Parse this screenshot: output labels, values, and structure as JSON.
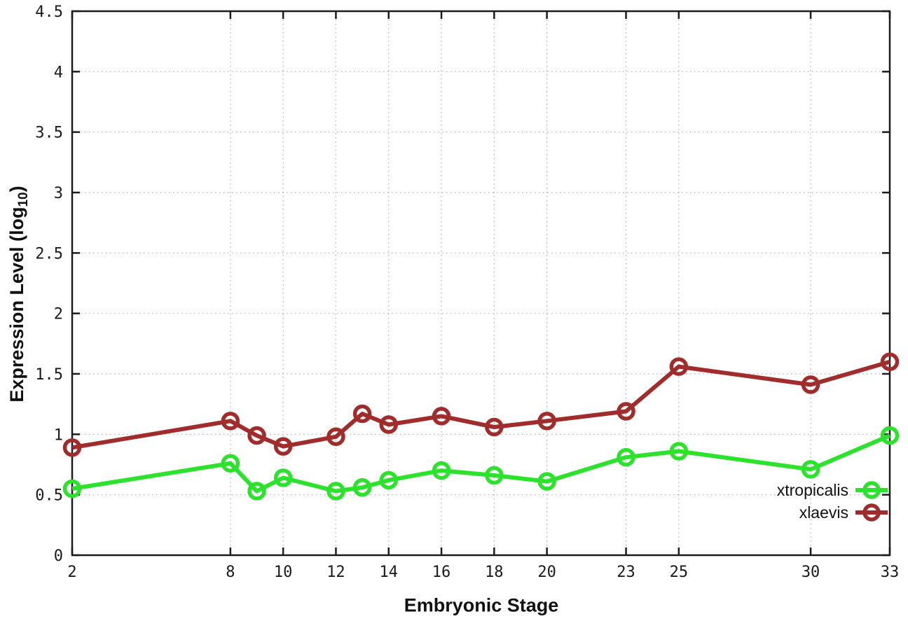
{
  "figure": {
    "xlabel": "Embryonic Stage",
    "ylabel_prefix": "Expression Level (log",
    "ylabel_sub": "10",
    "ylabel_suffix": ")"
  },
  "chart_data": {
    "type": "line",
    "title": "",
    "xlabel": "Embryonic Stage",
    "ylabel": "Expression Level (log10)",
    "x": [
      2,
      8,
      9,
      10,
      12,
      13,
      14,
      16,
      18,
      20,
      23,
      25,
      30,
      33
    ],
    "series": [
      {
        "name": "xtropicalis",
        "color": "#2ce22c",
        "marker": "open-circle",
        "values": [
          0.55,
          0.76,
          0.53,
          0.64,
          0.53,
          0.56,
          0.62,
          0.7,
          0.66,
          0.61,
          0.81,
          0.86,
          0.71,
          0.99
        ]
      },
      {
        "name": "xlaevis",
        "color": "#a02c2c",
        "marker": "open-circle",
        "values": [
          0.89,
          1.11,
          0.99,
          0.9,
          0.98,
          1.17,
          1.08,
          1.15,
          1.06,
          1.11,
          1.19,
          1.56,
          1.41,
          1.6
        ]
      }
    ],
    "xlim": [
      2,
      33
    ],
    "ylim": [
      0,
      4.5
    ],
    "xticks": [
      2,
      8,
      10,
      12,
      14,
      16,
      18,
      20,
      23,
      25,
      30,
      33
    ],
    "yticks": [
      0,
      0.5,
      1,
      1.5,
      2,
      2.5,
      3,
      3.5,
      4,
      4.5
    ],
    "grid": true,
    "grid_style": "dotted",
    "legend_position": "inside-bottom-right"
  },
  "colors": {
    "background": "#ffffff",
    "axis": "#1c1c1c",
    "grid": "#adadad",
    "tick_text": "#1a1a1a"
  }
}
